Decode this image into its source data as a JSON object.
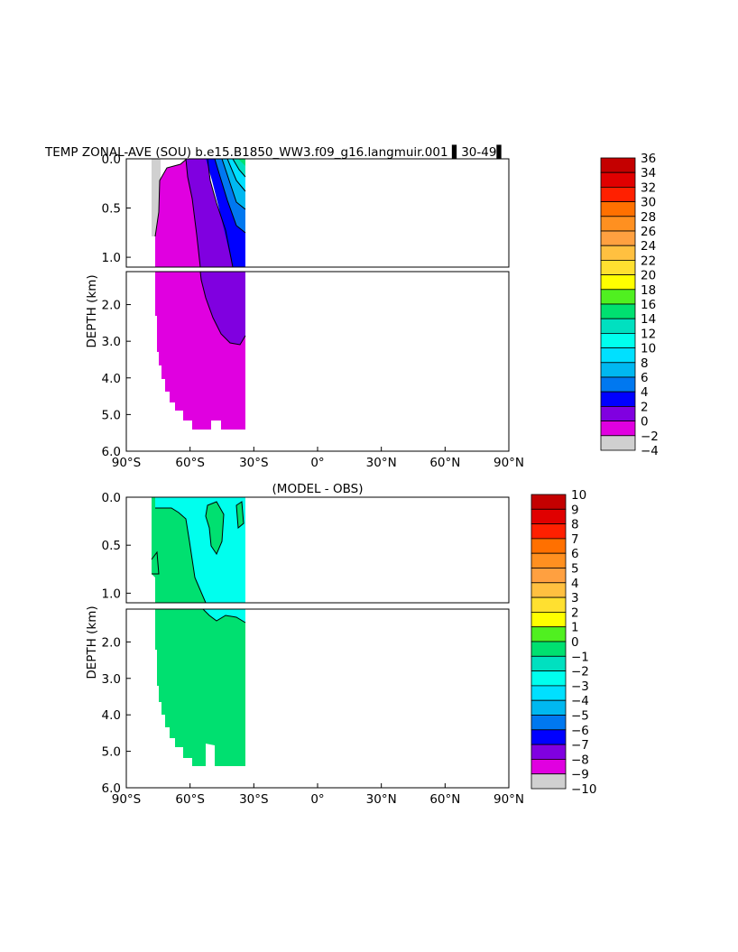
{
  "figure": {
    "title": "TEMP ZONAL-AVE (SOU) b.e15.B1850_WW3.f09_g16.langmuir.001 ▌30-49▌",
    "subtitle": "(MODEL - OBS)"
  },
  "chart_data": [
    {
      "type": "heatmap",
      "title": "TEMP ZONAL-AVE (SOU) b.e15.B1850_WW3.f09_g16.langmuir.001 ▌30-49▌",
      "xlabel": "",
      "ylabel": "DEPTH (km)",
      "x_ticks": [
        "90°S",
        "60°S",
        "30°S",
        "0°",
        "30°N",
        "60°N",
        "90°N"
      ],
      "x_tick_values": [
        -90,
        -60,
        -30,
        0,
        30,
        60,
        90
      ],
      "xlim": [
        -90,
        90
      ],
      "y_ticks_upper": [
        "0.0",
        "0.5",
        "1.0"
      ],
      "y_tick_values_upper": [
        0,
        0.5,
        1.0
      ],
      "y_ticks_lower": [
        "2.0",
        "3.0",
        "4.0",
        "5.0",
        "6.0"
      ],
      "y_tick_values_lower": [
        2,
        3,
        4,
        5,
        6
      ],
      "ylim_upper": [
        0,
        1.1
      ],
      "ylim_lower": [
        1.1,
        6.0
      ],
      "colorbar": {
        "labels": [
          "36",
          "34",
          "32",
          "30",
          "28",
          "26",
          "24",
          "22",
          "20",
          "18",
          "16",
          "14",
          "12",
          "10",
          "8",
          "6",
          "4",
          "2",
          "0",
          "−2",
          "−4"
        ],
        "colors": [
          "#c40000",
          "#e00000",
          "#ff2000",
          "#ff7000",
          "#ff9020",
          "#ffa040",
          "#ffc040",
          "#ffe030",
          "#ffff00",
          "#50f020",
          "#00e070",
          "#00e0c0",
          "#00ffee",
          "#00e0ff",
          "#00b8f0",
          "#0078f0",
          "#0000ff",
          "#8000e0",
          "#e000e0",
          "#d0d0d0",
          "#707070"
        ]
      },
      "regions": [
        {
          "name": "0-2",
          "color": "#e000e0"
        },
        {
          "name": "2-4",
          "color": "#8000e0"
        },
        {
          "name": "4-6",
          "color": "#0000ff"
        },
        {
          "name": "-2-0",
          "color": "#d0d0d0"
        }
      ]
    },
    {
      "type": "heatmap",
      "title": "(MODEL - OBS)",
      "xlabel": "",
      "ylabel": "DEPTH (km)",
      "x_ticks": [
        "90°S",
        "60°S",
        "30°S",
        "0°",
        "30°N",
        "60°N",
        "90°N"
      ],
      "x_tick_values": [
        -90,
        -60,
        -30,
        0,
        30,
        60,
        90
      ],
      "xlim": [
        -90,
        90
      ],
      "y_ticks_upper": [
        "0.0",
        "0.5",
        "1.0"
      ],
      "y_tick_values_upper": [
        0,
        0.5,
        1.0
      ],
      "y_ticks_lower": [
        "2.0",
        "3.0",
        "4.0",
        "5.0",
        "6.0"
      ],
      "y_tick_values_lower": [
        2,
        3,
        4,
        5,
        6
      ],
      "ylim_upper": [
        0,
        1.1
      ],
      "ylim_lower": [
        1.1,
        6.0
      ],
      "colorbar": {
        "labels": [
          "10",
          "9",
          "8",
          "7",
          "6",
          "5",
          "4",
          "3",
          "2",
          "1",
          "0",
          "−1",
          "−2",
          "−3",
          "−4",
          "−5",
          "−6",
          "−7",
          "−8",
          "−9",
          "−10"
        ],
        "colors": [
          "#c40000",
          "#e00000",
          "#ff2000",
          "#ff7000",
          "#ff9020",
          "#ffa040",
          "#ffc040",
          "#ffe030",
          "#ffff00",
          "#50f020",
          "#00e070",
          "#00e0c0",
          "#00ffee",
          "#00e0ff",
          "#00b8f0",
          "#0078f0",
          "#0000ff",
          "#8000e0",
          "#e000e0",
          "#d0d0d0",
          "#707070"
        ]
      },
      "regions": [
        {
          "name": "0-1",
          "color": "#00e070"
        },
        {
          "name": "-1-0",
          "color": "#00ffee"
        }
      ]
    }
  ]
}
